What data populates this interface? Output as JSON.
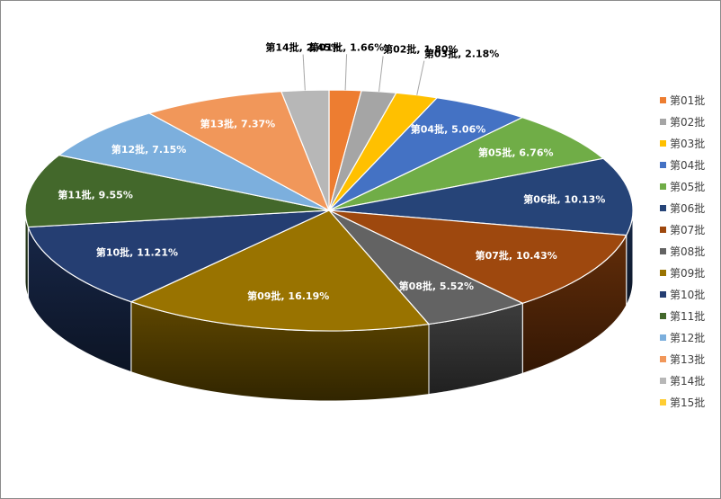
{
  "chart_data": {
    "type": "pie",
    "style": "3d",
    "categories": [
      "第01批",
      "第02批",
      "第03批",
      "第04批",
      "第05批",
      "第06批",
      "第07批",
      "第08批",
      "第09批",
      "第10批",
      "第11批",
      "第12批",
      "第13批",
      "第14批",
      "第15批"
    ],
    "values": [
      1.66,
      1.8,
      2.18,
      5.06,
      6.76,
      10.13,
      10.43,
      5.52,
      16.19,
      11.21,
      9.55,
      7.15,
      7.37,
      2.45,
      null
    ],
    "data_labels": [
      "第01批, 1.66%",
      "第02批, 1.80%",
      "第03批, 2.18%",
      "第04批, 5.06%",
      "第05批, 6.76%",
      "第06批, 10.13%",
      "第07批, 10.43%",
      "第08批, 5.52%",
      "第09批, 16.19%",
      "第10批, 11.21%",
      "第11批, 9.55%",
      "第12批, 7.15%",
      "第13批, 7.37%",
      "第14批, 2.45%",
      ""
    ],
    "colors": [
      "#ED7D31",
      "#A5A5A5",
      "#FFC000",
      "#4472C4",
      "#70AD47",
      "#264478",
      "#9E480E",
      "#636363",
      "#997300",
      "#253E72",
      "#43682B",
      "#7CAFDD",
      "#F1975A",
      "#B7B7B7",
      "#FFCD33"
    ],
    "title": "",
    "legend": {
      "position": "right"
    }
  }
}
